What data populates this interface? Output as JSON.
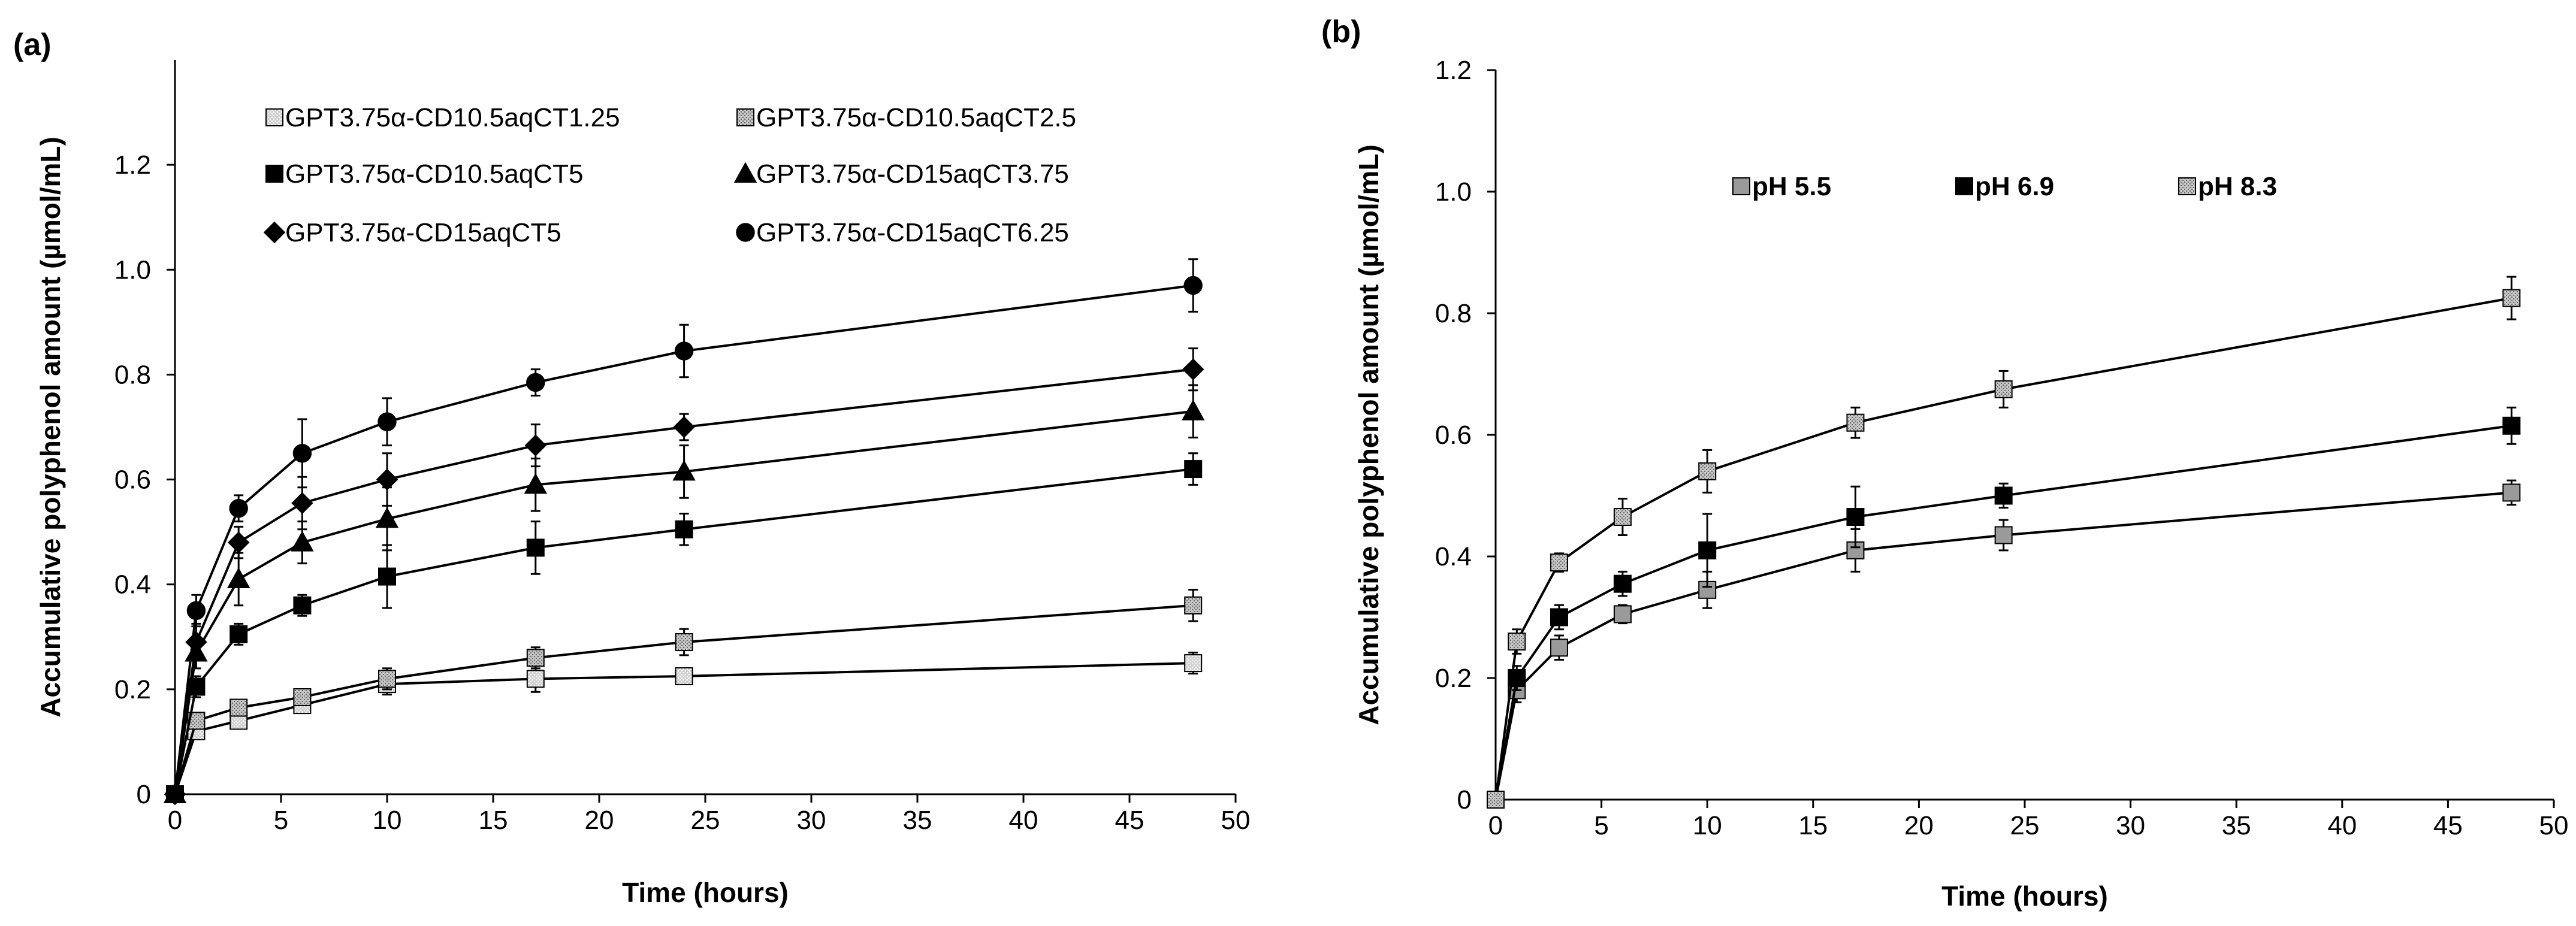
{
  "chart_data": [
    {
      "panel_label": "(a)",
      "type": "line",
      "xlabel": "Time (hours)",
      "ylabel": "Accumulative polyphenol amount (µmol/mL)",
      "xlim": [
        0,
        50
      ],
      "ylim": [
        0,
        1.4
      ],
      "x_ticks": [
        0,
        5,
        10,
        15,
        20,
        25,
        30,
        35,
        40,
        45,
        50
      ],
      "x_tick_labels": [
        "0",
        "5",
        "10",
        "15",
        "20",
        "25",
        "30",
        "35",
        "40",
        "45",
        "50"
      ],
      "y_ticks": [
        0,
        0.2,
        0.4,
        0.6,
        0.8,
        1.0,
        1.2
      ],
      "y_tick_labels": [
        "0",
        "0.2",
        "0.4",
        "0.6",
        "0.8",
        "1.0",
        "1.2"
      ],
      "x": [
        0,
        1,
        3,
        6,
        10,
        17,
        24,
        48
      ],
      "legend_position": "top-left",
      "series": [
        {
          "name": "GPT3.75α-CD10.5aqCT1.25",
          "marker": "square-light",
          "values": [
            0.0,
            0.12,
            0.14,
            0.17,
            0.21,
            0.22,
            0.225,
            0.25
          ],
          "errors": [
            0.0,
            0.015,
            0.015,
            0.015,
            0.02,
            0.025,
            0.015,
            0.02
          ]
        },
        {
          "name": "GPT3.75α-CD10.5aqCT2.5",
          "marker": "square-dotted",
          "values": [
            0.0,
            0.14,
            0.165,
            0.185,
            0.22,
            0.26,
            0.29,
            0.36
          ],
          "errors": [
            0.0,
            0.015,
            0.015,
            0.015,
            0.02,
            0.02,
            0.025,
            0.03
          ]
        },
        {
          "name": "GPT3.75α-CD10.5aqCT5",
          "marker": "square-black",
          "values": [
            0.0,
            0.205,
            0.305,
            0.36,
            0.415,
            0.47,
            0.505,
            0.62
          ],
          "errors": [
            0.0,
            0.02,
            0.02,
            0.02,
            0.06,
            0.05,
            0.03,
            0.03
          ]
        },
        {
          "name": "GPT3.75α-CD15aqCT3.75",
          "marker": "triangle",
          "values": [
            0.0,
            0.27,
            0.41,
            0.48,
            0.525,
            0.59,
            0.615,
            0.73
          ],
          "errors": [
            0.0,
            0.03,
            0.05,
            0.04,
            0.06,
            0.05,
            0.05,
            0.05
          ]
        },
        {
          "name": "GPT3.75α-CD15aqCT5",
          "marker": "diamond",
          "values": [
            0.0,
            0.29,
            0.48,
            0.555,
            0.6,
            0.665,
            0.7,
            0.81
          ],
          "errors": [
            0.0,
            0.035,
            0.03,
            0.05,
            0.05,
            0.04,
            0.025,
            0.04
          ]
        },
        {
          "name": "GPT3.75α-CD15aqCT6.25",
          "marker": "circle",
          "values": [
            0.0,
            0.35,
            0.545,
            0.65,
            0.71,
            0.785,
            0.845,
            0.97
          ],
          "errors": [
            0.0,
            0.03,
            0.025,
            0.065,
            0.045,
            0.025,
            0.05,
            0.05
          ]
        }
      ]
    },
    {
      "panel_label": "(b)",
      "type": "line",
      "xlabel": "Time (hours)",
      "ylabel": "Accumulative polyphenol amount (µmol/mL)",
      "xlim": [
        0,
        50
      ],
      "ylim": [
        0,
        1.2
      ],
      "x_ticks": [
        0,
        5,
        10,
        15,
        20,
        25,
        30,
        35,
        40,
        45,
        50
      ],
      "x_tick_labels": [
        "0",
        "5",
        "10",
        "15",
        "20",
        "25",
        "30",
        "35",
        "40",
        "45",
        "50"
      ],
      "y_ticks": [
        0,
        0.2,
        0.4,
        0.6,
        0.8,
        1.0,
        1.2
      ],
      "y_tick_labels": [
        "0",
        "0.2",
        "0.4",
        "0.6",
        "0.8",
        "1.0",
        "1.2"
      ],
      "x": [
        0,
        1,
        3,
        6,
        10,
        17,
        24,
        48
      ],
      "legend_position": "top-center",
      "series": [
        {
          "name": "pH 5.5",
          "marker": "square-grey",
          "values": [
            0.0,
            0.18,
            0.25,
            0.305,
            0.345,
            0.41,
            0.435,
            0.505
          ],
          "errors": [
            0.0,
            0.02,
            0.02,
            0.015,
            0.03,
            0.035,
            0.025,
            0.02
          ]
        },
        {
          "name": "pH 6.9",
          "marker": "square-black",
          "values": [
            0.0,
            0.2,
            0.3,
            0.355,
            0.41,
            0.465,
            0.5,
            0.615
          ],
          "errors": [
            0.0,
            0.02,
            0.02,
            0.02,
            0.06,
            0.05,
            0.02,
            0.03
          ]
        },
        {
          "name": "pH 8.3",
          "marker": "square-dotted",
          "values": [
            0.0,
            0.26,
            0.39,
            0.465,
            0.54,
            0.62,
            0.675,
            0.825
          ],
          "errors": [
            0.0,
            0.02,
            0.015,
            0.03,
            0.035,
            0.025,
            0.03,
            0.035
          ]
        }
      ]
    }
  ]
}
